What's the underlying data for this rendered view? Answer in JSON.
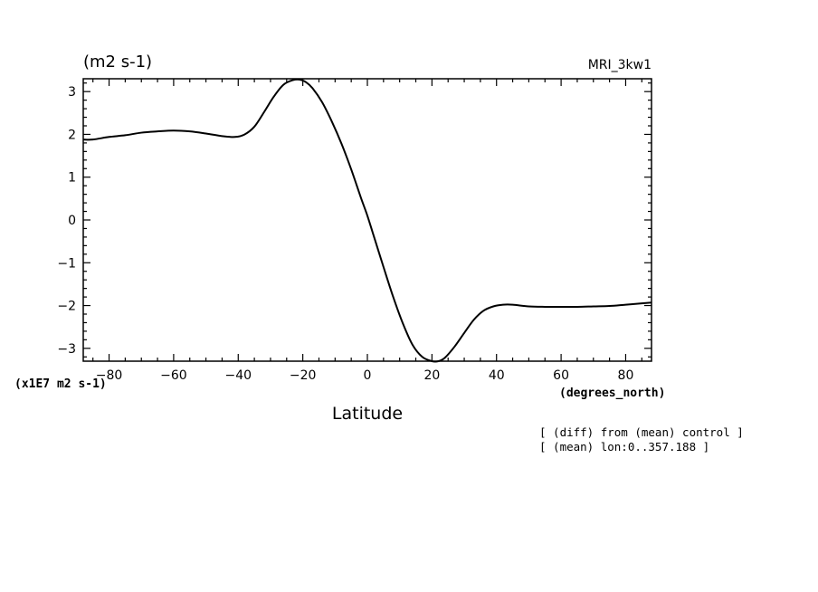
{
  "chart_data": {
    "type": "line",
    "units_label": "(m2 s-1)",
    "model_label": "MRI_3kw1",
    "scale_label": "(x1E7 m2 s-1)",
    "x_units_label": "(degrees_north)",
    "xlabel": "Latitude",
    "notes": [
      "[ (diff) from (mean) control ]",
      "[ (mean) lon:0..357.188 ]"
    ],
    "xlim": [
      -88,
      88
    ],
    "ylim": [
      -3.3,
      3.3
    ],
    "x_ticks": [
      -80,
      -60,
      -40,
      -20,
      0,
      20,
      40,
      60,
      80
    ],
    "y_ticks": [
      3,
      2,
      1,
      0,
      -1,
      -2,
      -3
    ],
    "x_tick_labels": [
      "−80",
      "−60",
      "−40",
      "−20",
      "0",
      "20",
      "40",
      "60",
      "80"
    ],
    "y_tick_labels": [
      "3",
      "2",
      "1",
      "0",
      "−1",
      "−2",
      "−3"
    ],
    "series": [
      {
        "color": "#000000",
        "x": [
          -88,
          -85,
          -80,
          -75,
          -70,
          -65,
          -60,
          -55,
          -50,
          -45,
          -41,
          -38,
          -35,
          -32,
          -29,
          -26,
          -23,
          -21,
          -19,
          -17,
          -14,
          -11,
          -8,
          -5,
          -2,
          0,
          2,
          5,
          8,
          11,
          14,
          17,
          20,
          22,
          24,
          27,
          30,
          33,
          36,
          39,
          42,
          45,
          50,
          55,
          60,
          65,
          70,
          75,
          80,
          85,
          88
        ],
        "y": [
          1.88,
          1.88,
          1.94,
          1.98,
          2.04,
          2.07,
          2.09,
          2.07,
          2.02,
          1.96,
          1.94,
          2.0,
          2.18,
          2.52,
          2.88,
          3.16,
          3.27,
          3.28,
          3.22,
          3.08,
          2.75,
          2.3,
          1.78,
          1.18,
          0.52,
          0.1,
          -0.38,
          -1.1,
          -1.8,
          -2.42,
          -2.92,
          -3.2,
          -3.3,
          -3.3,
          -3.22,
          -2.96,
          -2.64,
          -2.33,
          -2.12,
          -2.02,
          -1.98,
          -1.98,
          -2.02,
          -2.03,
          -2.03,
          -2.03,
          -2.02,
          -2.01,
          -1.98,
          -1.95,
          -1.93
        ]
      }
    ]
  }
}
